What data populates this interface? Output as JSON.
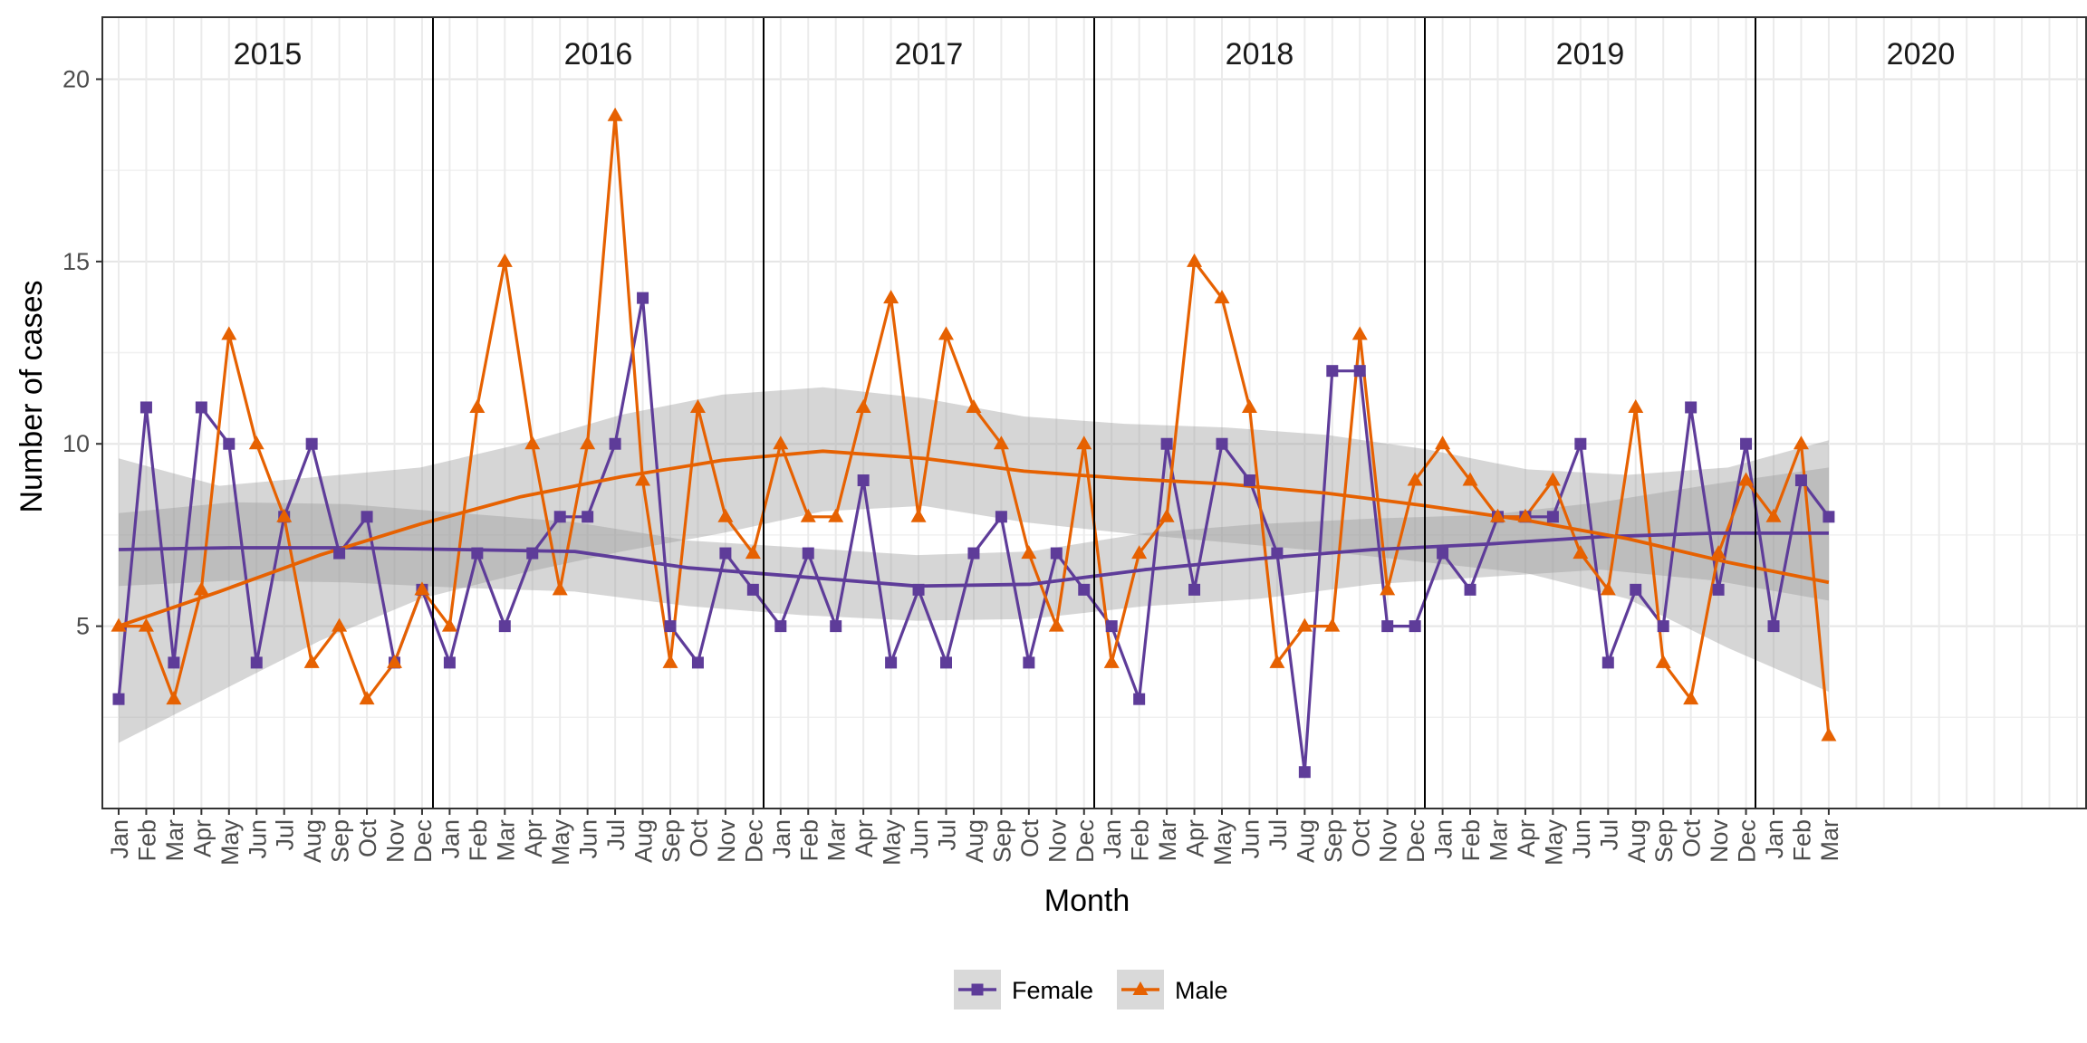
{
  "chart_data": {
    "type": "line",
    "xlabel": "Month",
    "ylabel": "Number of cases",
    "ylim": [
      0,
      21.7
    ],
    "yticks": [
      5,
      10,
      15,
      20
    ],
    "grid": true,
    "legend_position": "bottom",
    "panels": [
      "2015",
      "2016",
      "2017",
      "2018",
      "2019",
      "2020"
    ],
    "month_labels": [
      "Jan",
      "Feb",
      "Mar",
      "Apr",
      "May",
      "Jun",
      "Jul",
      "Aug",
      "Sep",
      "Oct",
      "Nov",
      "Dec"
    ],
    "series": [
      {
        "name": "Female",
        "color": "#5e3c99",
        "marker": "square",
        "values": [
          3,
          11,
          4,
          11,
          10,
          4,
          8,
          10,
          7,
          8,
          4,
          6,
          4,
          7,
          5,
          7,
          8,
          8,
          10,
          14,
          5,
          4,
          7,
          6,
          5,
          7,
          5,
          9,
          4,
          6,
          4,
          7,
          8,
          4,
          7,
          6,
          5,
          3,
          10,
          6,
          10,
          9,
          7,
          1,
          12,
          12,
          5,
          5,
          7,
          6,
          8,
          8,
          8,
          10,
          4,
          6,
          5,
          11,
          6,
          10,
          5,
          9,
          8
        ],
        "trend": [
          7.1,
          7.15,
          7.15,
          7.1,
          7.05,
          6.6,
          6.35,
          6.1,
          6.15,
          6.55,
          6.85,
          7.1,
          7.25,
          7.45,
          7.55,
          7.55
        ],
        "band_upper": [
          8.1,
          8.4,
          8.35,
          8.1,
          7.85,
          7.35,
          7.15,
          6.95,
          7.05,
          7.55,
          7.8,
          7.95,
          8.05,
          8.4,
          8.9,
          9.35
        ],
        "band_lower": [
          6.1,
          6.25,
          6.2,
          6.05,
          5.95,
          5.55,
          5.3,
          5.15,
          5.2,
          5.55,
          5.75,
          6.15,
          6.35,
          6.55,
          6.25,
          5.7
        ]
      },
      {
        "name": "Male",
        "color": "#e66101",
        "marker": "triangle",
        "values": [
          5,
          5,
          3,
          6,
          13,
          10,
          8,
          4,
          5,
          3,
          4,
          6,
          5,
          11,
          15,
          10,
          6,
          10,
          19,
          9,
          4,
          11,
          8,
          7,
          10,
          8,
          8,
          11,
          14,
          8,
          13,
          11,
          10,
          7,
          5,
          10,
          4,
          7,
          8,
          15,
          14,
          11,
          4,
          5,
          5,
          13,
          6,
          9,
          10,
          9,
          8,
          8,
          9,
          7,
          6,
          11,
          4,
          3,
          7,
          9,
          8,
          10,
          2
        ],
        "trend": [
          5.0,
          5.95,
          6.95,
          7.8,
          8.55,
          9.1,
          9.55,
          9.8,
          9.6,
          9.25,
          9.05,
          8.9,
          8.65,
          8.3,
          7.9,
          7.4,
          6.75,
          6.2
        ],
        "band_upper": [
          9.6,
          8.85,
          9.1,
          9.35,
          10.0,
          10.8,
          11.35,
          11.55,
          11.25,
          10.75,
          10.55,
          10.45,
          10.25,
          9.85,
          9.3,
          9.15,
          9.35,
          10.1
        ],
        "band_lower": [
          1.8,
          3.2,
          4.6,
          5.75,
          6.45,
          7.05,
          7.55,
          8.15,
          8.3,
          7.85,
          7.55,
          7.3,
          7.05,
          6.75,
          6.45,
          5.75,
          4.4,
          3.2
        ]
      }
    ]
  }
}
